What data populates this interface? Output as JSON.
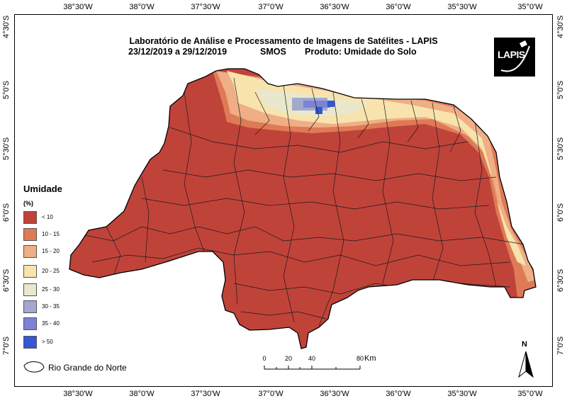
{
  "title": {
    "line1": "Laboratório de Análise e Processamento de Imagens de Satélites - LAPIS",
    "line2_date": "23/12/2019  a  29/12/2019",
    "line2_sensor": "SMOS",
    "line2_product": "Produto: Umidade do Solo"
  },
  "logo": {
    "text": "LAPIS"
  },
  "graticule": {
    "longitudes": [
      "38°30'W",
      "38°0'W",
      "37°30'W",
      "37°0'W",
      "36°30'W",
      "36°0'W",
      "35°30'W",
      "35°0'W"
    ],
    "latitudes": [
      "4°30'S",
      "5°0'S",
      "5°30'S",
      "6°0'S",
      "6°30'S",
      "7°0'S"
    ]
  },
  "legend": {
    "title": "Umidade",
    "units": "(%)",
    "classes": [
      {
        "label": "< 10",
        "color": "#c0433a"
      },
      {
        "label": "10 - 15",
        "color": "#df7a56"
      },
      {
        "label": "15 - 20",
        "color": "#efae86"
      },
      {
        "label": "20 - 25",
        "color": "#f8e3ad"
      },
      {
        "label": "25 - 30",
        "color": "#e9e8cd"
      },
      {
        "label": "30 - 35",
        "color": "#a3a8cf"
      },
      {
        "label": "35 - 40",
        "color": "#7c82d4"
      },
      {
        "label": "> 50",
        "color": "#3357d6"
      }
    ]
  },
  "outline_legend": {
    "label": "Rio Grande do Norte"
  },
  "scale_bar": {
    "ticks": [
      "0",
      "20",
      "40",
      "80"
    ],
    "unit": "Km"
  },
  "north_arrow": {
    "letter": "N"
  }
}
